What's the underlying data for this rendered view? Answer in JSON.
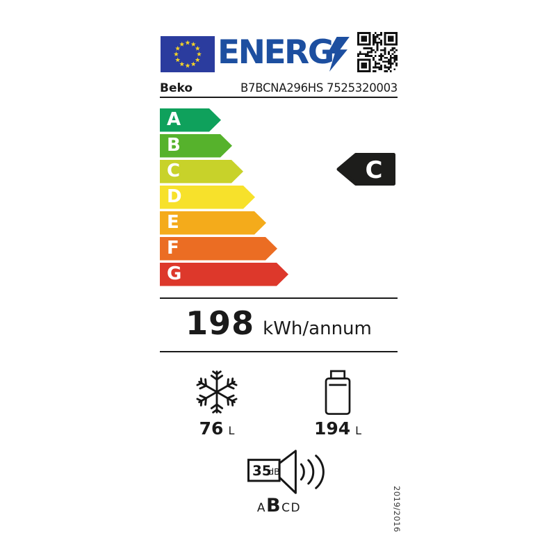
{
  "header": {
    "logo_text": "ENERG",
    "logo_blue": "#1d4fa0",
    "flag_blue": "#2b3c9e",
    "star_yellow": "#f5d327"
  },
  "product": {
    "brand": "Beko",
    "model_line": "B7BCNA296HS 7525320003"
  },
  "scale": {
    "classes": [
      {
        "label": "A",
        "color": "#0fa15c"
      },
      {
        "label": "B",
        "color": "#56b22c"
      },
      {
        "label": "C",
        "color": "#c8d22a"
      },
      {
        "label": "D",
        "color": "#f7e12b"
      },
      {
        "label": "E",
        "color": "#f4ab1b"
      },
      {
        "label": "F",
        "color": "#eb6d23"
      },
      {
        "label": "G",
        "color": "#dd382b"
      }
    ],
    "rated_class": "C",
    "rated_arrow_color": "#1d1d1b"
  },
  "energy": {
    "value": "198",
    "unit": "kWh/annum"
  },
  "compartments": {
    "freezer": {
      "icon": "snowflake",
      "value": "76",
      "unit": "L"
    },
    "fridge": {
      "icon": "bottle",
      "value": "194",
      "unit": "L"
    }
  },
  "noise": {
    "value": "35",
    "unit": "dB",
    "classes": [
      "A",
      "B",
      "C",
      "D"
    ],
    "current_class": "B"
  },
  "regulation": "2019/2016"
}
